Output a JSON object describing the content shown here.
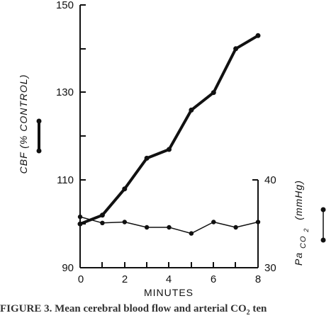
{
  "chart_data": {
    "type": "line",
    "x": [
      0,
      1,
      2,
      3,
      4,
      5,
      6,
      7,
      8
    ],
    "xlabel": "MINUTES",
    "xlim": [
      0,
      8
    ],
    "xticks": [
      "0",
      "2",
      "4",
      "6",
      "8"
    ],
    "ylabel_left": "CBF (% CONTROL)",
    "ylim_left": [
      90,
      150
    ],
    "yticks_left": [
      "90",
      "110",
      "130",
      "150"
    ],
    "ylabel_right": "Pa CO2 (mmHg)",
    "ylabel_right_main": "Pa",
    "ylabel_right_sub": "CO",
    "ylabel_right_subnum": "2",
    "ylabel_right_unit": "(mmHg)",
    "ylim_right": [
      30,
      40
    ],
    "yticks_right": [
      "30",
      "40"
    ],
    "series": [
      {
        "axis": "left",
        "values": [
          100,
          102,
          108,
          115,
          117,
          126,
          130,
          140,
          143
        ],
        "style": "thick"
      },
      {
        "axis": "right",
        "values": [
          35.8,
          35.1,
          35.2,
          34.6,
          34.6,
          33.9,
          35.2,
          34.6,
          35.2
        ],
        "style": "thin"
      }
    ],
    "legend": "side markers: thick line with dots (left), thin line with dots (right)",
    "grid": false
  },
  "caption": {
    "text_start": "FIGURE 3. Mean cerebral blood flow and arterial CO",
    "text_sub": "2",
    "text_end": " ten"
  }
}
